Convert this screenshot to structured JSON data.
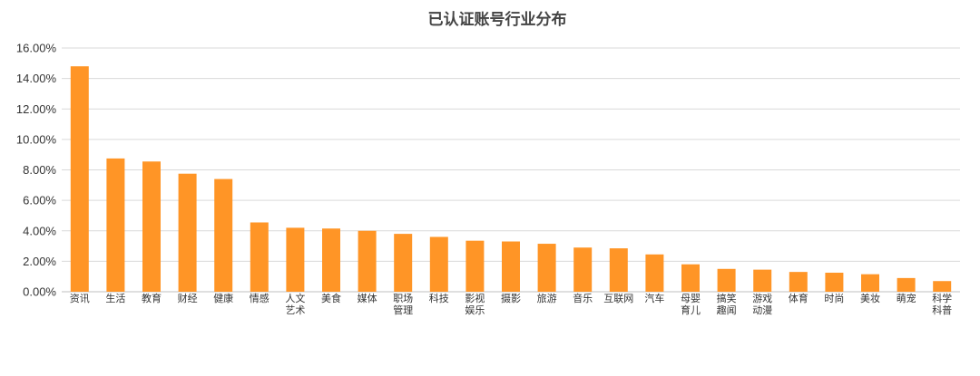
{
  "chart_data": {
    "type": "bar",
    "title": "已认证账号行业分布",
    "xlabel": "",
    "ylabel": "",
    "ylim": [
      0,
      16
    ],
    "yticks": [
      "0.00%",
      "2.00%",
      "4.00%",
      "6.00%",
      "8.00%",
      "10.00%",
      "12.00%",
      "14.00%",
      "16.00%"
    ],
    "grid": true,
    "legend": "none",
    "bar_color": "#FF9526",
    "categories": [
      "资讯",
      "生活",
      "教育",
      "财经",
      "健康",
      "情感",
      "人文艺术",
      "美食",
      "媒体",
      "职场管理",
      "科技",
      "影视娱乐",
      "摄影",
      "旅游",
      "音乐",
      "互联网",
      "汽车",
      "母婴育儿",
      "搞笑趣闻",
      "游戏动漫",
      "体育",
      "时尚",
      "美妆",
      "萌宠",
      "科学科普"
    ],
    "values": [
      14.8,
      8.75,
      8.55,
      7.75,
      7.4,
      4.55,
      4.2,
      4.15,
      4.0,
      3.8,
      3.6,
      3.35,
      3.3,
      3.15,
      2.9,
      2.85,
      2.45,
      1.8,
      1.5,
      1.45,
      1.3,
      1.25,
      1.15,
      0.9,
      0.7
    ]
  }
}
